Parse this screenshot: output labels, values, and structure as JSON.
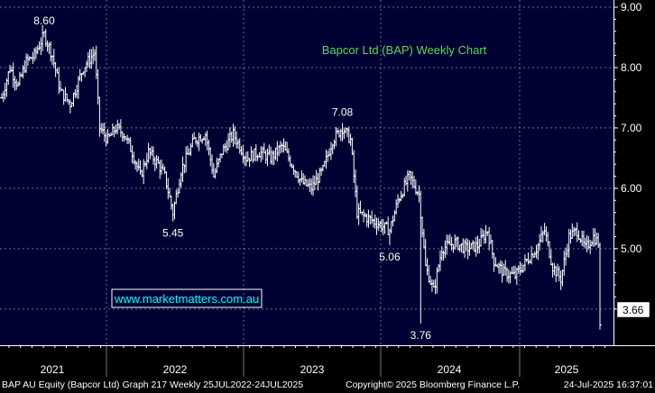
{
  "chart_data": {
    "type": "candlestick",
    "title": "Bapcor Ltd (BAP) Weekly Chart",
    "watermark": "www.marketmatters.com.au",
    "x_labels": [
      "2021",
      "2022",
      "2023",
      "2024",
      "2025"
    ],
    "y_ticks": [
      "9.00",
      "8.00",
      "7.00",
      "6.00",
      "5.00",
      "4.00"
    ],
    "ylim": [
      3.4,
      9.0
    ],
    "last_price": "3.66",
    "annotations": [
      {
        "text": "8.60",
        "week": 26,
        "value": 8.6,
        "pos": "above"
      },
      {
        "text": "5.45",
        "week": 105,
        "value": 5.45,
        "pos": "below"
      },
      {
        "text": "7.08",
        "week": 209,
        "value": 7.08,
        "pos": "above"
      },
      {
        "text": "5.06",
        "week": 238,
        "value": 5.06,
        "pos": "below"
      },
      {
        "text": "3.76",
        "week": 257,
        "value": 3.76,
        "pos": "below"
      }
    ],
    "anchors": [
      [
        0,
        7.5
      ],
      [
        5,
        8.0
      ],
      [
        10,
        7.7
      ],
      [
        15,
        8.1
      ],
      [
        20,
        8.2
      ],
      [
        26,
        8.55
      ],
      [
        31,
        8.2
      ],
      [
        36,
        7.6
      ],
      [
        42,
        7.4
      ],
      [
        50,
        8.0
      ],
      [
        57,
        8.25
      ],
      [
        60,
        7.0
      ],
      [
        65,
        6.8
      ],
      [
        70,
        7.0
      ],
      [
        75,
        6.9
      ],
      [
        80,
        6.6
      ],
      [
        85,
        6.2
      ],
      [
        90,
        6.6
      ],
      [
        96,
        6.4
      ],
      [
        100,
        6.2
      ],
      [
        105,
        5.6
      ],
      [
        110,
        6.3
      ],
      [
        118,
        6.8
      ],
      [
        125,
        6.9
      ],
      [
        130,
        6.2
      ],
      [
        135,
        6.6
      ],
      [
        142,
        6.9
      ],
      [
        150,
        6.5
      ],
      [
        158,
        6.6
      ],
      [
        165,
        6.5
      ],
      [
        172,
        6.7
      ],
      [
        178,
        6.4
      ],
      [
        184,
        6.1
      ],
      [
        190,
        6.0
      ],
      [
        197,
        6.3
      ],
      [
        203,
        6.8
      ],
      [
        209,
        7.0
      ],
      [
        214,
        6.8
      ],
      [
        218,
        5.6
      ],
      [
        225,
        5.5
      ],
      [
        232,
        5.4
      ],
      [
        238,
        5.3
      ],
      [
        243,
        5.8
      ],
      [
        250,
        6.2
      ],
      [
        256,
        5.9
      ],
      [
        260,
        4.7
      ],
      [
        265,
        4.3
      ],
      [
        270,
        5.0
      ],
      [
        278,
        5.1
      ],
      [
        285,
        5.0
      ],
      [
        292,
        5.05
      ],
      [
        298,
        5.3
      ],
      [
        302,
        4.8
      ],
      [
        308,
        4.6
      ],
      [
        315,
        4.55
      ],
      [
        322,
        4.8
      ],
      [
        328,
        5.0
      ],
      [
        333,
        5.3
      ],
      [
        338,
        4.7
      ],
      [
        343,
        4.5
      ],
      [
        348,
        5.2
      ],
      [
        353,
        5.3
      ],
      [
        358,
        5.0
      ],
      [
        363,
        5.2
      ],
      [
        366,
        5.1
      ],
      [
        367,
        3.66
      ]
    ],
    "seed": 7
  },
  "footer": {
    "left": "BAP AU Equity (Bapcor Ltd) Graph 217  Weekly 25JUL2022-24JUL2025",
    "mid": "Copyright© 2025 Bloomberg Finance L.P.",
    "right": "24-Jul-2025 16:37:01"
  }
}
